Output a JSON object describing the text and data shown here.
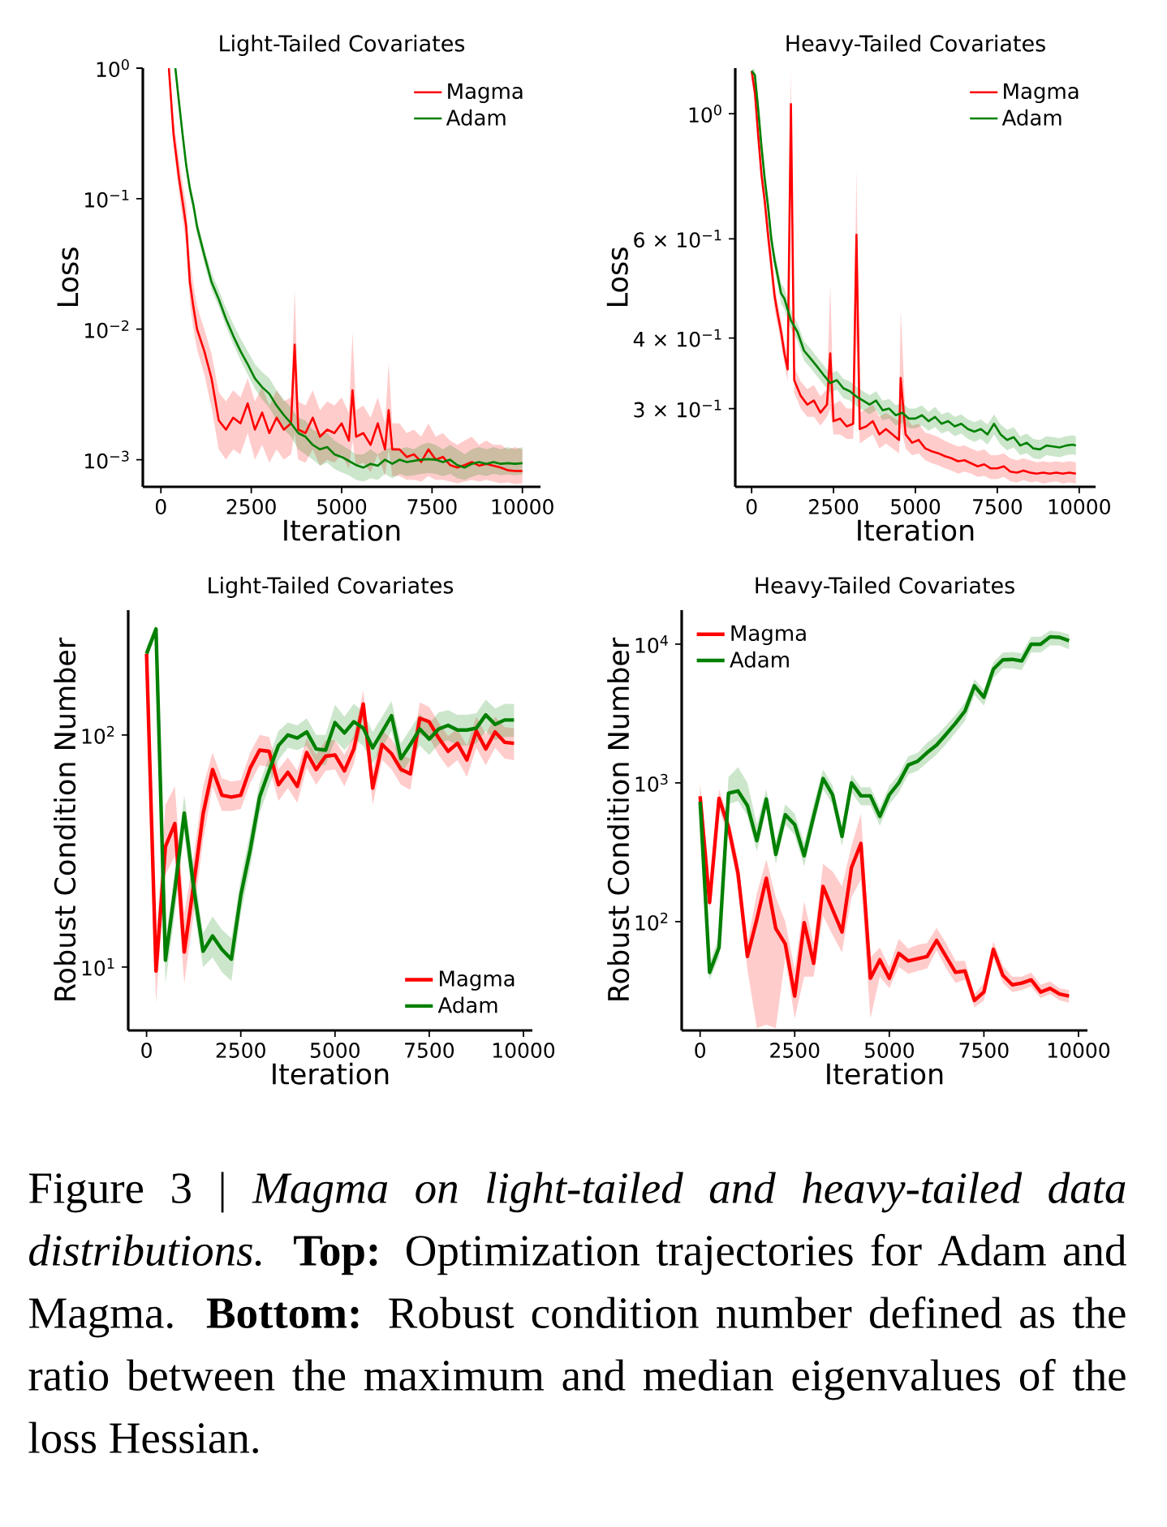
{
  "chart_data": [
    {
      "type": "line",
      "title": "Light-Tailed Covariates",
      "xlabel": "Iteration",
      "ylabel": "Loss",
      "log": "y",
      "legend": "top right",
      "xlim": [
        -500,
        10500
      ],
      "ylim": [
        0.00062,
        1
      ],
      "xticks": [
        0,
        2500,
        5000,
        7500,
        10000
      ],
      "yticks": [
        {
          "value": 0.001,
          "label": "10$^{−3}$"
        },
        {
          "value": 0.01,
          "label": "10$^{−2}$"
        },
        {
          "value": 0.1,
          "label": "10$^{−1}$"
        },
        {
          "value": 1,
          "label": "10$^{0}$"
        }
      ],
      "series": [
        {
          "name": "Magma",
          "color": "#ff0000",
          "x": [
            220,
            350,
            500,
            600,
            700,
            800,
            900,
            1000,
            1200,
            1400,
            1600,
            1800,
            2000,
            2200,
            2400,
            2600,
            2800,
            3000,
            3200,
            3400,
            3600,
            3700,
            3800,
            4000,
            4200,
            4400,
            4600,
            4800,
            5000,
            5200,
            5300,
            5400,
            5600,
            5800,
            6000,
            6200,
            6300,
            6400,
            6600,
            6800,
            7000,
            7200,
            7400,
            7600,
            7800,
            8000,
            8200,
            8400,
            8600,
            8800,
            9000,
            9200,
            9400,
            9600,
            9800,
            10000
          ],
          "values": [
            1.0,
            0.31,
            0.144,
            0.095,
            0.061,
            0.023,
            0.0147,
            0.01,
            0.0068,
            0.0042,
            0.002,
            0.0017,
            0.0021,
            0.0019,
            0.0027,
            0.0017,
            0.0023,
            0.0016,
            0.0021,
            0.0017,
            0.0019,
            0.0076,
            0.0017,
            0.0016,
            0.0021,
            0.0015,
            0.0017,
            0.0016,
            0.0019,
            0.0014,
            0.0034,
            0.0015,
            0.0016,
            0.0013,
            0.0019,
            0.0012,
            0.0024,
            0.0012,
            0.0012,
            0.00105,
            0.0011,
            0.00096,
            0.0012,
            0.001,
            0.00105,
            0.00091,
            0.00087,
            0.00091,
            0.00096,
            0.0009,
            0.00093,
            0.0009,
            0.00087,
            0.00083,
            0.00082,
            0.00082
          ],
          "lower": [
            0.9,
            0.25,
            0.11,
            0.07,
            0.045,
            0.016,
            0.01,
            0.007,
            0.0045,
            0.0025,
            0.0012,
            0.001,
            0.0012,
            0.0011,
            0.0016,
            0.001,
            0.0013,
            0.00095,
            0.0012,
            0.001,
            0.0011,
            0.0016,
            0.001,
            0.00095,
            0.0012,
            0.0009,
            0.001,
            0.00095,
            0.0011,
            0.00085,
            0.0014,
            0.0009,
            0.00095,
            0.0008,
            0.0011,
            0.00075,
            0.0012,
            0.00075,
            0.00075,
            0.0007,
            0.0007,
            0.00068,
            0.00075,
            0.0007,
            0.0007,
            0.00068,
            0.00066,
            0.00068,
            0.0007,
            0.00068,
            0.0007,
            0.00068,
            0.00066,
            0.00067,
            0.00065,
            0.00066
          ],
          "upper": [
            1.0,
            0.4,
            0.2,
            0.13,
            0.09,
            0.035,
            0.022,
            0.015,
            0.01,
            0.0065,
            0.0033,
            0.0028,
            0.0034,
            0.003,
            0.0042,
            0.0028,
            0.0036,
            0.0026,
            0.0034,
            0.0028,
            0.003,
            0.02,
            0.0028,
            0.0026,
            0.0034,
            0.0024,
            0.0028,
            0.0026,
            0.003,
            0.0023,
            0.0095,
            0.0024,
            0.0026,
            0.0021,
            0.003,
            0.0019,
            0.0055,
            0.0019,
            0.0019,
            0.0016,
            0.0017,
            0.0015,
            0.0019,
            0.0015,
            0.0016,
            0.0014,
            0.0013,
            0.0014,
            0.0015,
            0.0013,
            0.0014,
            0.0013,
            0.0013,
            0.0012,
            0.00125,
            0.0012
          ]
        },
        {
          "name": "Adam",
          "color": "#008000",
          "x": [
            400,
            500,
            600,
            700,
            800,
            900,
            1000,
            1200,
            1400,
            1600,
            1800,
            2000,
            2200,
            2400,
            2600,
            2800,
            3000,
            3200,
            3400,
            3600,
            3800,
            4000,
            4200,
            4400,
            4600,
            4800,
            5000,
            5200,
            5400,
            5600,
            5800,
            6000,
            6200,
            6400,
            6600,
            6800,
            7000,
            7200,
            7400,
            7600,
            7800,
            8000,
            8200,
            8400,
            8600,
            8800,
            9000,
            9200,
            9400,
            9600,
            9800,
            10000
          ],
          "values": [
            1.0,
            0.55,
            0.31,
            0.18,
            0.12,
            0.089,
            0.061,
            0.037,
            0.023,
            0.017,
            0.012,
            0.0089,
            0.0068,
            0.0054,
            0.0042,
            0.0036,
            0.0032,
            0.0026,
            0.0022,
            0.0019,
            0.0016,
            0.0015,
            0.0013,
            0.0012,
            0.00125,
            0.0011,
            0.00105,
            0.00098,
            0.00091,
            0.00087,
            0.00093,
            0.0009,
            0.001,
            0.00093,
            0.001,
            0.00096,
            0.00098,
            0.001,
            0.00101,
            0.001,
            0.00096,
            0.001,
            0.00091,
            0.00087,
            0.00093,
            0.00096,
            0.00093,
            0.00096,
            0.00093,
            0.00094,
            0.00093,
            0.00094
          ],
          "lower": [
            0.9,
            0.5,
            0.28,
            0.16,
            0.105,
            0.078,
            0.053,
            0.032,
            0.02,
            0.015,
            0.0105,
            0.0077,
            0.0058,
            0.0045,
            0.0035,
            0.0029,
            0.0025,
            0.002,
            0.0017,
            0.0015,
            0.0012,
            0.0011,
            0.001,
            0.0009,
            0.00095,
            0.00085,
            0.0008,
            0.00076,
            0.0007,
            0.00068,
            0.00072,
            0.0007,
            0.00078,
            0.00072,
            0.00078,
            0.00075,
            0.00076,
            0.00078,
            0.00079,
            0.00078,
            0.00075,
            0.00078,
            0.00072,
            0.0007,
            0.00074,
            0.00077,
            0.00075,
            0.00078,
            0.00076,
            0.00077,
            0.00076,
            0.00077
          ],
          "upper": [
            1.0,
            0.6,
            0.34,
            0.2,
            0.135,
            0.1,
            0.069,
            0.042,
            0.027,
            0.02,
            0.0145,
            0.011,
            0.0085,
            0.0068,
            0.0054,
            0.0047,
            0.0042,
            0.0034,
            0.0029,
            0.0025,
            0.0021,
            0.002,
            0.0017,
            0.0016,
            0.0016,
            0.0014,
            0.0013,
            0.0012,
            0.0011,
            0.0011,
            0.0012,
            0.0011,
            0.0012,
            0.00125,
            0.0012,
            0.00125,
            0.0012,
            0.0013,
            0.00135,
            0.0013,
            0.0012,
            0.0013,
            0.0012,
            0.0011,
            0.0012,
            0.00125,
            0.0012,
            0.00125,
            0.0012,
            0.00125,
            0.0012,
            0.00125
          ]
        }
      ]
    },
    {
      "type": "line",
      "title": "Heavy-Tailed Covariates",
      "xlabel": "Iteration",
      "ylabel": "Loss",
      "log": "y",
      "legend": "top right",
      "xlim": [
        -500,
        10500
      ],
      "ylim": [
        0.218,
        1.204
      ],
      "xticks": [
        0,
        2500,
        5000,
        7500,
        10000
      ],
      "yticks": [
        {
          "value": 0.3,
          "label": "3 × 10$^{−1}$"
        },
        {
          "value": 0.4,
          "label": "4 × 10$^{−1}$"
        },
        {
          "value": 0.6,
          "label": "6 × 10$^{−1}$"
        },
        {
          "value": 1,
          "label": "10$^{0}$"
        }
      ],
      "series": [
        {
          "name": "Magma",
          "color": "#ff0000",
          "x": [
            0,
            100,
            200,
            300,
            400,
            500,
            600,
            700,
            800,
            900,
            1000,
            1100,
            1200,
            1300,
            1500,
            1700,
            1900,
            2100,
            2300,
            2400,
            2500,
            2700,
            2900,
            3100,
            3200,
            3300,
            3500,
            3700,
            3900,
            4100,
            4300,
            4500,
            4550,
            4700,
            4900,
            5100,
            5300,
            5500,
            5700,
            5900,
            6100,
            6300,
            6500,
            6700,
            6900,
            7100,
            7300,
            7500,
            7700,
            7900,
            8100,
            8300,
            8500,
            8700,
            8900,
            9100,
            9300,
            9500,
            9700,
            9900
          ],
          "values": [
            1.19,
            1.09,
            0.915,
            0.78,
            0.7,
            0.61,
            0.54,
            0.475,
            0.44,
            0.41,
            0.376,
            0.352,
            1.04,
            0.337,
            0.316,
            0.305,
            0.31,
            0.295,
            0.305,
            0.376,
            0.285,
            0.288,
            0.279,
            0.282,
            0.61,
            0.276,
            0.279,
            0.285,
            0.27,
            0.276,
            0.27,
            0.264,
            0.34,
            0.27,
            0.261,
            0.264,
            0.255,
            0.252,
            0.25,
            0.247,
            0.245,
            0.242,
            0.243,
            0.24,
            0.237,
            0.239,
            0.235,
            0.235,
            0.237,
            0.232,
            0.231,
            0.233,
            0.231,
            0.23,
            0.231,
            0.23,
            0.231,
            0.23,
            0.231,
            0.23
          ],
          "lower": [
            1.15,
            1.05,
            0.88,
            0.75,
            0.67,
            0.58,
            0.51,
            0.45,
            0.42,
            0.39,
            0.36,
            0.335,
            0.8,
            0.32,
            0.3,
            0.29,
            0.29,
            0.28,
            0.29,
            0.3,
            0.27,
            0.27,
            0.265,
            0.265,
            0.4,
            0.26,
            0.265,
            0.27,
            0.255,
            0.26,
            0.255,
            0.25,
            0.28,
            0.255,
            0.248,
            0.25,
            0.243,
            0.24,
            0.238,
            0.235,
            0.233,
            0.23,
            0.232,
            0.23,
            0.227,
            0.228,
            0.225,
            0.225,
            0.227,
            0.223,
            0.222,
            0.224,
            0.222,
            0.223,
            0.221,
            0.222,
            0.223,
            0.221,
            0.222,
            0.221
          ],
          "upper": [
            1.2,
            1.13,
            0.95,
            0.82,
            0.73,
            0.64,
            0.57,
            0.5,
            0.46,
            0.43,
            0.395,
            0.37,
            1.2,
            0.355,
            0.335,
            0.325,
            0.33,
            0.315,
            0.325,
            0.5,
            0.305,
            0.31,
            0.3,
            0.3,
            0.8,
            0.295,
            0.3,
            0.305,
            0.29,
            0.295,
            0.29,
            0.285,
            0.45,
            0.29,
            0.28,
            0.282,
            0.272,
            0.27,
            0.267,
            0.263,
            0.26,
            0.257,
            0.258,
            0.255,
            0.252,
            0.254,
            0.248,
            0.248,
            0.25,
            0.245,
            0.243,
            0.245,
            0.243,
            0.241,
            0.242,
            0.241,
            0.242,
            0.241,
            0.242,
            0.241
          ]
        },
        {
          "name": "Adam",
          "color": "#008000",
          "x": [
            0,
            100,
            200,
            300,
            400,
            500,
            600,
            700,
            800,
            900,
            1000,
            1200,
            1400,
            1600,
            1800,
            2000,
            2200,
            2400,
            2600,
            2800,
            3000,
            3200,
            3400,
            3600,
            3800,
            4000,
            4200,
            4400,
            4600,
            4800,
            5000,
            5200,
            5400,
            5600,
            5800,
            6000,
            6200,
            6400,
            6600,
            6800,
            7000,
            7200,
            7400,
            7600,
            7800,
            8000,
            8200,
            8400,
            8600,
            8800,
            9000,
            9200,
            9400,
            9600,
            9800,
            9900
          ],
          "values": [
            1.19,
            1.17,
            1.02,
            0.875,
            0.766,
            0.686,
            0.6,
            0.55,
            0.514,
            0.48,
            0.47,
            0.43,
            0.41,
            0.38,
            0.368,
            0.356,
            0.344,
            0.333,
            0.337,
            0.326,
            0.322,
            0.315,
            0.31,
            0.305,
            0.31,
            0.298,
            0.3,
            0.292,
            0.295,
            0.288,
            0.288,
            0.292,
            0.285,
            0.29,
            0.282,
            0.285,
            0.279,
            0.282,
            0.276,
            0.273,
            0.276,
            0.27,
            0.282,
            0.27,
            0.264,
            0.267,
            0.258,
            0.261,
            0.255,
            0.254,
            0.258,
            0.257,
            0.256,
            0.258,
            0.259,
            0.258
          ],
          "lower": [
            1.15,
            1.12,
            0.98,
            0.84,
            0.735,
            0.66,
            0.575,
            0.53,
            0.495,
            0.46,
            0.45,
            0.415,
            0.395,
            0.365,
            0.354,
            0.342,
            0.331,
            0.32,
            0.324,
            0.313,
            0.31,
            0.303,
            0.298,
            0.293,
            0.298,
            0.286,
            0.288,
            0.28,
            0.283,
            0.277,
            0.277,
            0.28,
            0.274,
            0.278,
            0.271,
            0.274,
            0.268,
            0.271,
            0.265,
            0.262,
            0.265,
            0.259,
            0.27,
            0.259,
            0.253,
            0.256,
            0.248,
            0.25,
            0.245,
            0.244,
            0.248,
            0.247,
            0.246,
            0.248,
            0.249,
            0.248
          ],
          "upper": [
            1.2,
            1.2,
            1.06,
            0.91,
            0.8,
            0.715,
            0.625,
            0.57,
            0.535,
            0.5,
            0.49,
            0.45,
            0.425,
            0.395,
            0.383,
            0.37,
            0.358,
            0.346,
            0.35,
            0.339,
            0.335,
            0.328,
            0.322,
            0.317,
            0.322,
            0.31,
            0.312,
            0.304,
            0.307,
            0.3,
            0.3,
            0.304,
            0.296,
            0.302,
            0.293,
            0.296,
            0.29,
            0.293,
            0.287,
            0.284,
            0.287,
            0.281,
            0.293,
            0.281,
            0.275,
            0.278,
            0.268,
            0.271,
            0.265,
            0.264,
            0.268,
            0.267,
            0.266,
            0.268,
            0.269,
            0.268
          ]
        }
      ]
    },
    {
      "type": "line",
      "title": "Light-Tailed Covariates",
      "xlabel": "Iteration",
      "ylabel": "Robust Condition Number",
      "log": "y",
      "legend": "bottom right",
      "xlim": [
        -487,
        10237
      ],
      "ylim": [
        5.33,
        345
      ],
      "xticks": [
        0,
        2500,
        5000,
        7500,
        10000
      ],
      "yticks": [
        {
          "value": 10,
          "label": "10$^{1}$"
        },
        {
          "value": 100,
          "label": "10$^{2}$"
        }
      ],
      "series": [
        {
          "name": "Magma",
          "color": "#ff0000",
          "x": [
            0,
            250,
            500,
            750,
            1000,
            1250,
            1500,
            1750,
            2000,
            2250,
            2500,
            2750,
            3000,
            3250,
            3500,
            3750,
            4000,
            4250,
            4500,
            4750,
            5000,
            5250,
            5500,
            5750,
            6000,
            6250,
            6500,
            6750,
            7000,
            7250,
            7500,
            7750,
            8000,
            8250,
            8500,
            8750,
            9000,
            9250,
            9500,
            9750
          ],
          "values": [
            224,
            9.6,
            33,
            41.5,
            11.6,
            22.7,
            45.7,
            71,
            55,
            54,
            55,
            72,
            86,
            85,
            61,
            69,
            60,
            84,
            71,
            81,
            82,
            70,
            87,
            136,
            59,
            91,
            83,
            71,
            68,
            118,
            114,
            97,
            85,
            92,
            78,
            104,
            87,
            103,
            93,
            92
          ],
          "lower": [
            200,
            7,
            25,
            30,
            8.5,
            17,
            35,
            60,
            47,
            47,
            48,
            62,
            74,
            73,
            52,
            59,
            51,
            72,
            61,
            70,
            71,
            60,
            75,
            118,
            50,
            78,
            71,
            61,
            58,
            100,
            97,
            82,
            72,
            78,
            66,
            88,
            74,
            88,
            79,
            78
          ],
          "upper": [
            250,
            13,
            50,
            60,
            17,
            30,
            60,
            84,
            65,
            63,
            64,
            84,
            100,
            98,
            71,
            80,
            70,
            97,
            82,
            95,
            95,
            82,
            100,
            155,
            70,
            105,
            96,
            82,
            79,
            138,
            132,
            113,
            99,
            106,
            90,
            120,
            101,
            120,
            108,
            107
          ]
        },
        {
          "name": "Adam",
          "color": "#008000",
          "x": [
            0,
            250,
            500,
            750,
            1000,
            1250,
            1500,
            1750,
            2000,
            2250,
            2500,
            2750,
            3000,
            3250,
            3500,
            3750,
            4000,
            4250,
            4500,
            4750,
            5000,
            5250,
            5500,
            5750,
            6000,
            6250,
            6500,
            6750,
            7000,
            7250,
            7500,
            7750,
            8000,
            8250,
            8500,
            8750,
            9000,
            9250,
            9500,
            9750
          ],
          "values": [
            224,
            286,
            10.7,
            21.5,
            46,
            22,
            11.7,
            13.6,
            11.9,
            10.8,
            20.4,
            32,
            54,
            70,
            90,
            100,
            97,
            103,
            87,
            86,
            113,
            102,
            114,
            107,
            88,
            103,
            121,
            79,
            91,
            106,
            96,
            106,
            110,
            105,
            105,
            107,
            122,
            111,
            116,
            116
          ],
          "lower": [
            210,
            270,
            8.5,
            17,
            38,
            18,
            10,
            11,
            9.5,
            8.7,
            17,
            27,
            46,
            60,
            78,
            88,
            86,
            90,
            75,
            74,
            95,
            86,
            96,
            90,
            75,
            88,
            104,
            68,
            78,
            90,
            82,
            91,
            95,
            90,
            90,
            92,
            104,
            95,
            98,
            98
          ],
          "upper": [
            240,
            300,
            13,
            26,
            55,
            27,
            14,
            16.5,
            14.5,
            13.3,
            24,
            38,
            62,
            80,
            104,
            113,
            110,
            118,
            100,
            100,
            135,
            120,
            136,
            126,
            103,
            120,
            140,
            92,
            106,
            123,
            112,
            125,
            128,
            122,
            122,
            124,
            142,
            130,
            136,
            136
          ]
        }
      ]
    },
    {
      "type": "line",
      "title": "Heavy-Tailed Covariates",
      "xlabel": "Iteration",
      "ylabel": "Robust Condition Number",
      "log": "y",
      "legend": "top left",
      "xlim": [
        -487,
        10237
      ],
      "ylim": [
        16.4,
        17600
      ],
      "xticks": [
        0,
        2500,
        5000,
        7500,
        10000
      ],
      "yticks": [
        {
          "value": 100,
          "label": "10$^{2}$"
        },
        {
          "value": 1000,
          "label": "10$^{3}$"
        },
        {
          "value": 10000,
          "label": "10$^{4}$"
        }
      ],
      "series": [
        {
          "name": "Magma",
          "color": "#ff0000",
          "x": [
            0,
            250,
            500,
            750,
            1000,
            1250,
            1500,
            1750,
            2000,
            2250,
            2500,
            2750,
            3000,
            3250,
            3500,
            3750,
            4000,
            4250,
            4500,
            4750,
            5000,
            5250,
            5500,
            5750,
            6000,
            6250,
            6500,
            6750,
            7000,
            7250,
            7500,
            7750,
            8000,
            8250,
            8500,
            8750,
            9000,
            9250,
            9500,
            9750
          ],
          "values": [
            800,
            137,
            773,
            480,
            224,
            56,
            104,
            205,
            89,
            69,
            29,
            98,
            50,
            179,
            122,
            84,
            245,
            366,
            39,
            53,
            39,
            59,
            52,
            54,
            56,
            73,
            56,
            43,
            44,
            27,
            31,
            63,
            41,
            35,
            36,
            38,
            31,
            33,
            30,
            29
          ],
          "lower": [
            600,
            120,
            650,
            400,
            180,
            45,
            17,
            18,
            17,
            55,
            20,
            40,
            40,
            110,
            80,
            60,
            150,
            200,
            20,
            40,
            33,
            47,
            42,
            44,
            46,
            62,
            46,
            36,
            38,
            24,
            27,
            55,
            36,
            31,
            32,
            34,
            28,
            30,
            27,
            26
          ],
          "upper": [
            1000,
            160,
            900,
            560,
            280,
            70,
            160,
            280,
            150,
            100,
            45,
            140,
            70,
            260,
            230,
            180,
            350,
            600,
            55,
            65,
            47,
            75,
            64,
            68,
            70,
            90,
            70,
            52,
            52,
            30,
            36,
            72,
            48,
            40,
            40,
            43,
            35,
            37,
            33,
            32
          ]
        },
        {
          "name": "Adam",
          "color": "#008000",
          "x": [
            0,
            250,
            500,
            750,
            1000,
            1250,
            1500,
            1750,
            2000,
            2250,
            2500,
            2750,
            3000,
            3250,
            3500,
            3750,
            4000,
            4250,
            4500,
            4750,
            5000,
            5250,
            5500,
            5750,
            6000,
            6250,
            6500,
            6750,
            7000,
            7250,
            7500,
            7750,
            8000,
            8250,
            8500,
            8750,
            9000,
            9250,
            9500,
            9750
          ],
          "values": [
            731,
            43,
            65,
            843,
            875,
            686,
            383,
            764,
            305,
            589,
            501,
            298,
            573,
            1074,
            821,
            411,
            1000,
            806,
            806,
            573,
            821,
            1000,
            1344,
            1432,
            1653,
            1875,
            2240,
            2690,
            3300,
            5000,
            4150,
            6600,
            7710,
            7770,
            7570,
            10000,
            10000,
            11300,
            11200,
            10600
          ],
          "lower": [
            620,
            38,
            55,
            700,
            740,
            580,
            320,
            650,
            260,
            500,
            420,
            250,
            490,
            900,
            700,
            350,
            850,
            690,
            690,
            490,
            700,
            850,
            1150,
            1220,
            1400,
            1600,
            1900,
            2300,
            2800,
            4300,
            3600,
            5700,
            6700,
            6700,
            6500,
            8700,
            8700,
            9800,
            9800,
            9200
          ],
          "upper": [
            950,
            50,
            78,
            1100,
            1300,
            1000,
            500,
            900,
            380,
            700,
            600,
            370,
            700,
            1250,
            960,
            480,
            1150,
            930,
            930,
            660,
            950,
            1150,
            1550,
            1650,
            1950,
            2200,
            2600,
            3100,
            3800,
            5600,
            4700,
            7400,
            8700,
            8800,
            8600,
            11300,
            11300,
            12500,
            12300,
            11800
          ]
        }
      ],
      "annotations": [
        "Figure 3 | *Magma on light-tailed and heavy-tailed data distributions.* **Top:** Optimization trajectories for Adam and Magma. **Bottom:** Robust condition number defined as the ratio between the maximum and median eigenvalues of the loss Hessian."
      ]
    }
  ]
}
